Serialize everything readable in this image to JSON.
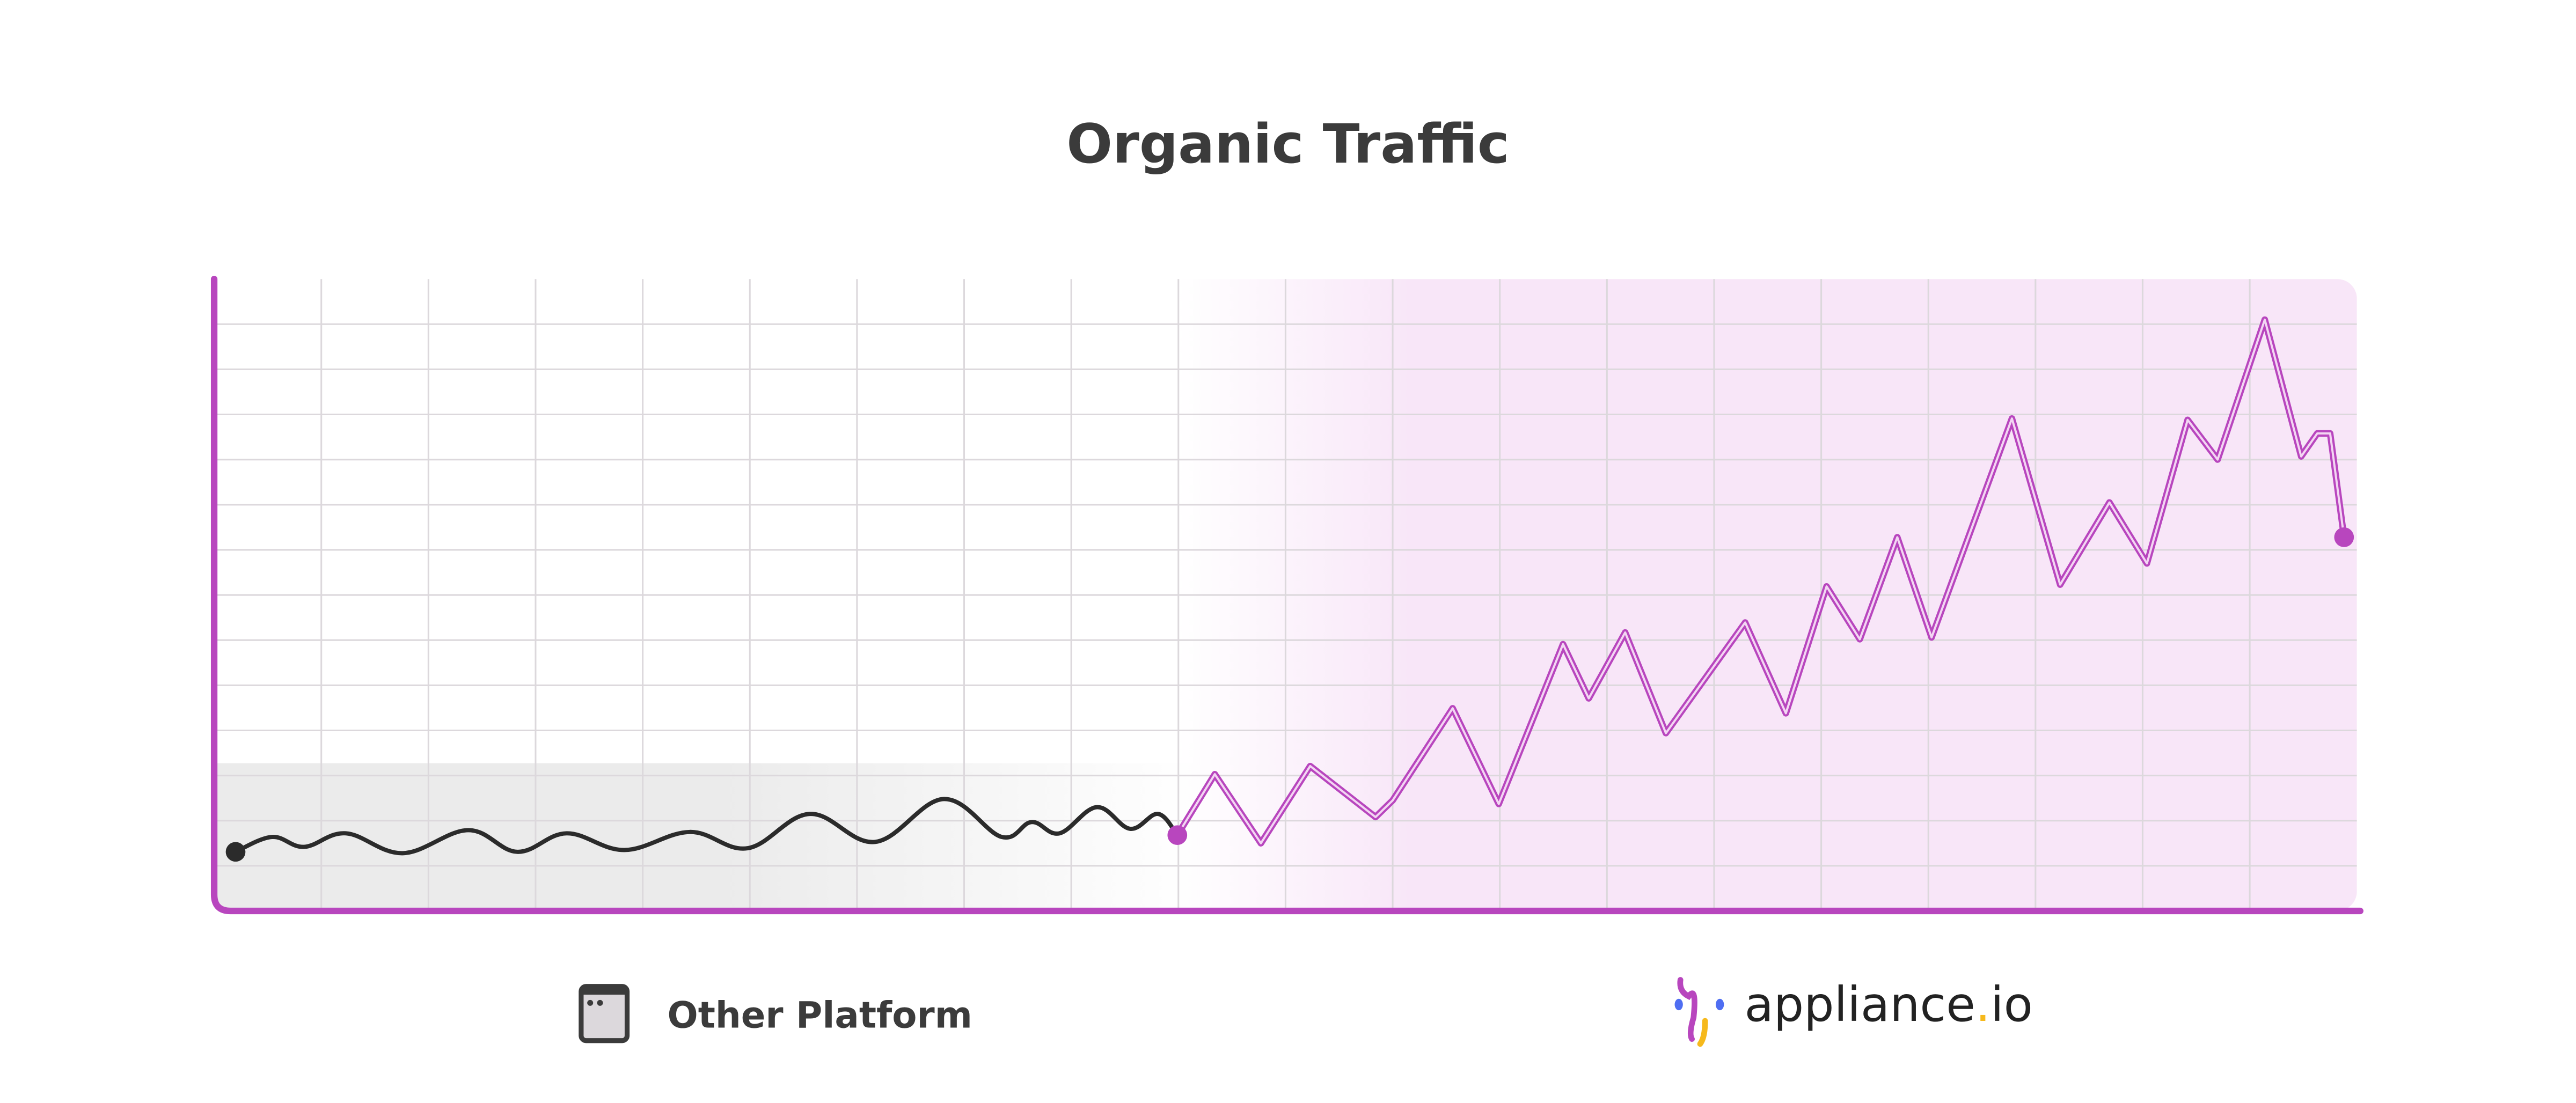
{
  "chart_data": {
    "type": "line",
    "title": "Organic Traffic",
    "xlabel": "",
    "ylabel": "",
    "xlim": [
      0,
      20
    ],
    "ylim": [
      0,
      14
    ],
    "grid": true,
    "legend_position": "bottom",
    "series": [
      {
        "name": "Other Platform",
        "color": "#2b2b2b",
        "x": [
          0.2,
          0.54,
          0.84,
          1.23,
          1.76,
          2.37,
          2.83,
          3.29,
          3.83,
          4.44,
          4.98,
          5.56,
          6.17,
          6.81,
          7.35,
          7.63,
          7.89,
          8.24,
          8.55,
          8.81,
          8.99
        ],
        "y": [
          1.31,
          1.64,
          1.42,
          1.72,
          1.28,
          1.79,
          1.31,
          1.72,
          1.35,
          1.75,
          1.39,
          2.15,
          1.53,
          2.48,
          1.64,
          1.97,
          1.72,
          2.3,
          1.82,
          2.15,
          1.68
        ]
      },
      {
        "name": "appliance.io",
        "color": "#b846be",
        "x": [
          8.99,
          9.34,
          9.77,
          10.23,
          10.84,
          11.0,
          11.56,
          11.99,
          12.59,
          12.83,
          13.17,
          13.55,
          14.29,
          14.67,
          15.05,
          15.36,
          15.71,
          16.03,
          16.78,
          17.23,
          17.69,
          18.04,
          18.42,
          18.7,
          19.14,
          19.48,
          19.63,
          19.75,
          19.88
        ],
        "y": [
          1.68,
          3.03,
          1.5,
          3.21,
          2.08,
          2.45,
          4.49,
          2.37,
          5.91,
          4.71,
          6.17,
          3.94,
          6.39,
          4.38,
          7.19,
          6.02,
          8.28,
          6.06,
          10.91,
          7.23,
          9.05,
          7.7,
          10.88,
          10.0,
          13.1,
          10.07,
          10.58,
          10.58,
          8.28
        ]
      }
    ]
  },
  "legend": {
    "other_platform": {
      "label": "Other Platform",
      "icon": "browser-window-icon"
    },
    "appliance": {
      "label_main": "appliance",
      "label_dot": ".",
      "label_tld": "io",
      "icon": "appliance-logo-icon"
    }
  },
  "colors": {
    "accent": "#b846be",
    "pink_region": "#f8e6f8",
    "grey_band": "#ebebeb",
    "grid": "#dcd8dc",
    "text": "#3b3b3b",
    "logo_blue": "#4f6ef2",
    "logo_yellow": "#f6b91c"
  }
}
